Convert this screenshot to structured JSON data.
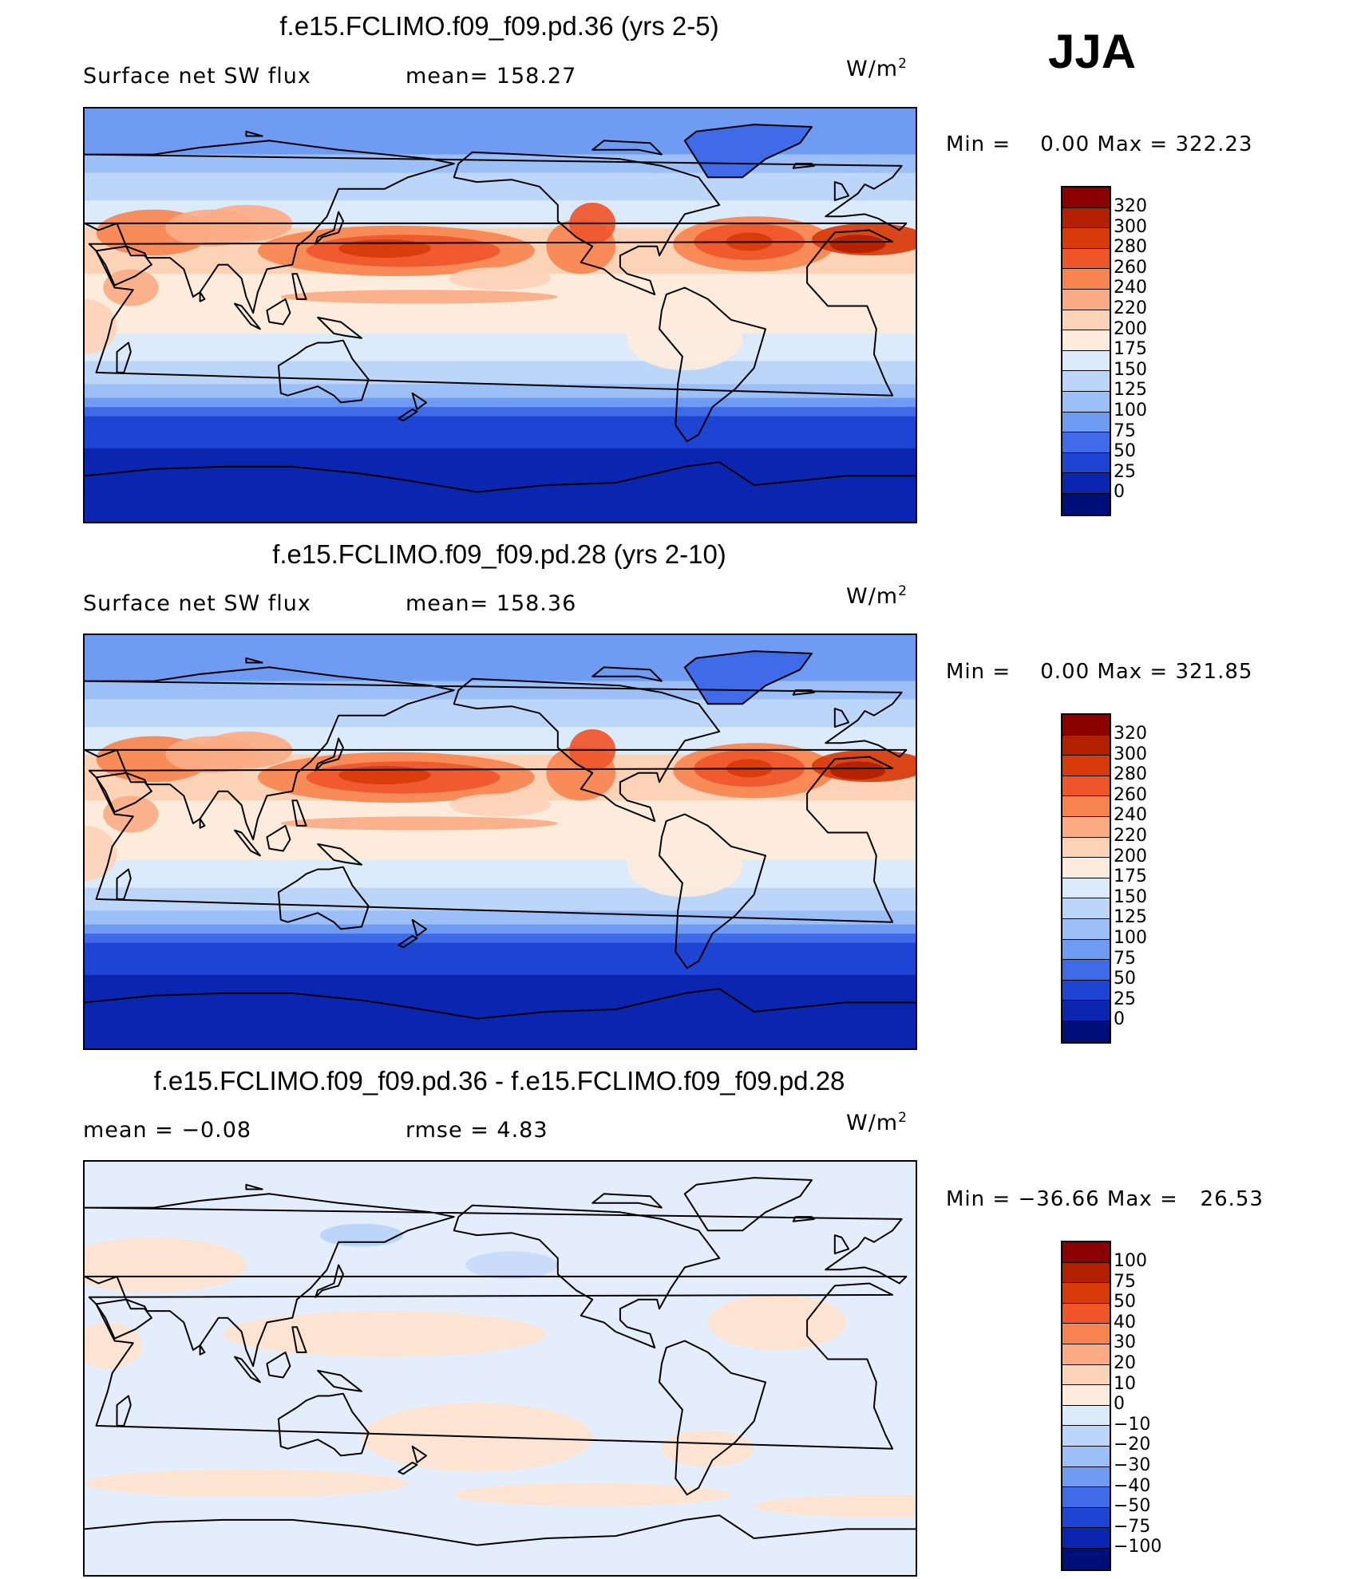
{
  "season": "JJA",
  "panels": [
    {
      "title": "f.e15.FCLIMO.f09_f09.pd.36 (yrs 2-5)",
      "left_label": "Surface net SW flux",
      "mid_label": "mean= 158.27",
      "units": "W/m",
      "units_sup": "2",
      "minmax": "Min =    0.00 Max = 322.23",
      "colorbar_labels": [
        "320",
        "300",
        "280",
        "260",
        "240",
        "220",
        "200",
        "175",
        "150",
        "125",
        "100",
        "75",
        "50",
        "25",
        "0"
      ],
      "field_kind": "abs"
    },
    {
      "title": "f.e15.FCLIMO.f09_f09.pd.28 (yrs 2-10)",
      "left_label": "Surface net SW flux",
      "mid_label": "mean= 158.36",
      "units": "W/m",
      "units_sup": "2",
      "minmax": "Min =    0.00 Max = 321.85",
      "colorbar_labels": [
        "320",
        "300",
        "280",
        "260",
        "240",
        "220",
        "200",
        "175",
        "150",
        "125",
        "100",
        "75",
        "50",
        "25",
        "0"
      ],
      "field_kind": "abs"
    },
    {
      "title": "f.e15.FCLIMO.f09_f09.pd.36 - f.e15.FCLIMO.f09_f09.pd.28",
      "left_label": "mean =   −0.08",
      "mid_label": "rmse =    4.83",
      "units": "W/m",
      "units_sup": "2",
      "minmax": "Min = −36.66 Max =   26.53",
      "colorbar_labels": [
        "100",
        "75",
        "50",
        "40",
        "30",
        "20",
        "10",
        "0",
        "−10",
        "−20",
        "−30",
        "−40",
        "−50",
        "−75",
        "−100"
      ],
      "field_kind": "diff"
    }
  ],
  "colorbar_colors_abs": [
    "#8b0000",
    "#b22000",
    "#d83a0a",
    "#f0552a",
    "#f7844e",
    "#fbab84",
    "#fdd3b8",
    "#fdecdc",
    "#dcebfb",
    "#bcd6fa",
    "#9cbff7",
    "#6f9bf2",
    "#3f6be8",
    "#1e44d4",
    "#0a26b0",
    "#000e7a"
  ],
  "colorbar_colors_diff": [
    "#8b0000",
    "#b22000",
    "#d83a0a",
    "#f0552a",
    "#f7844e",
    "#fbab84",
    "#fdd3b8",
    "#fdecdc",
    "#dcebfb",
    "#bcd6fa",
    "#9cbff7",
    "#6f9bf2",
    "#3f6be8",
    "#1e44d4",
    "#0a26b0",
    "#000e7a"
  ]
}
